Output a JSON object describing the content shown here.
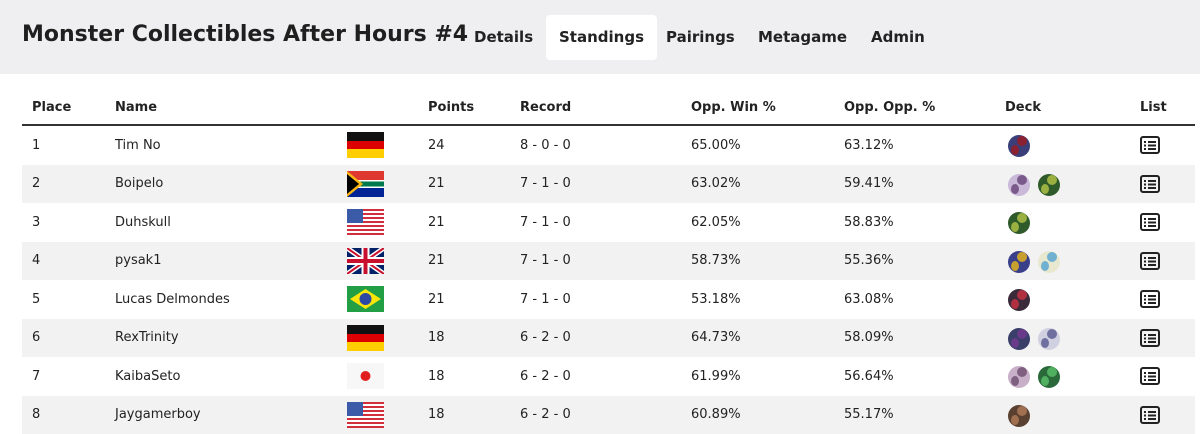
{
  "header": {
    "title": "Monster Collectibles After Hours #4",
    "tabs": [
      "Details",
      "Standings",
      "Pairings",
      "Metagame",
      "Admin"
    ]
  },
  "table": {
    "columns": [
      "Place",
      "Name",
      "Points",
      "Record",
      "Opp. Win %",
      "Opp. Opp. %",
      "Deck",
      "List"
    ],
    "rows": [
      [
        1,
        "Tim No",
        24,
        "8 - 0 - 0",
        "65.00%",
        "63.12%"
      ],
      [
        2,
        "Boipelo",
        21,
        "7 - 1 - 0",
        "63.02%",
        "59.41%"
      ],
      [
        3,
        "Duhskull",
        21,
        "7 - 1 - 0",
        "62.05%",
        "58.83%"
      ],
      [
        4,
        "pysak1",
        21,
        "7 - 1 - 0",
        "58.73%",
        "55.36%"
      ],
      [
        5,
        "Lucas Delmondes",
        21,
        "7 - 1 - 0",
        "53.18%",
        "63.08%"
      ],
      [
        6,
        "RexTrinity",
        18,
        "6 - 2 - 0",
        "64.73%",
        "58.09%"
      ],
      [
        7,
        "KaibaSeto",
        18,
        "6 - 2 - 0",
        "61.99%",
        "56.64%"
      ],
      [
        8,
        "Jaygamerboy",
        18,
        "6 - 2 - 0",
        "60.89%",
        "55.17%"
      ]
    ]
  }
}
